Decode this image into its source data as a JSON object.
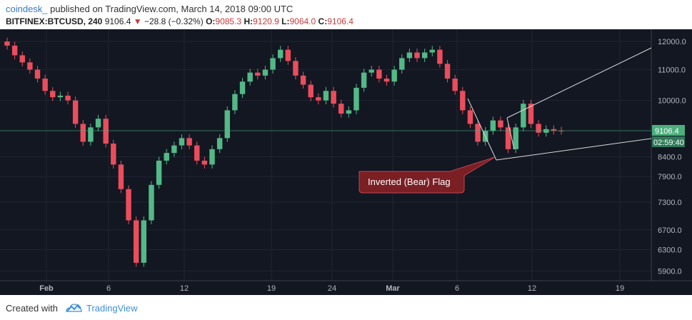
{
  "header": {
    "author": "coindesk_",
    "published_text": "published on TradingView.com, March 14, 2018 09:00 UTC",
    "symbol": "BITFINEX:BTCUSD, 240",
    "last": "9106.4",
    "change": "−28.8 (−0.32%)",
    "o_label": "O:",
    "o_value": "9085.3",
    "h_label": "H:",
    "h_value": "9120.9",
    "l_label": "L:",
    "l_value": "9064.0",
    "c_label": "C:",
    "c_value": "9106.4"
  },
  "footer": {
    "created_with": "Created with",
    "brand": "TradingView"
  },
  "colors": {
    "background": "#131722",
    "up": "#53b987",
    "down": "#eb4d5c",
    "annotation_fill": "#7a1f24",
    "price_tag": "#4caf7d"
  },
  "chart_data": {
    "type": "candlestick",
    "symbol": "BITFINEX:BTCUSD",
    "interval": "240",
    "x_tick_labels": [
      "Feb",
      "6",
      "12",
      "19",
      "24",
      "Mar",
      "6",
      "12",
      "19"
    ],
    "y_tick_labels": [
      "12000.0",
      "11000.0",
      "10000.0",
      "9106.4",
      "8400.0",
      "7900.0",
      "7300.0",
      "6700.0",
      "6300.0",
      "5900.0"
    ],
    "y_ticks": [
      12000,
      11000,
      10000,
      8400,
      7900,
      7300,
      6700,
      6300,
      5900
    ],
    "y_scale": "log",
    "ylim": [
      5800,
      12300
    ],
    "last_price": 9106.4,
    "last_price_label": "9106.4",
    "countdown": "02:59:40",
    "annotation": "Inverted (Bear) Flag",
    "closes": [
      11850,
      11500,
      11250,
      11000,
      10700,
      10300,
      10100,
      10150,
      10000,
      9300,
      8800,
      9200,
      9450,
      8750,
      8200,
      7600,
      6900,
      6050,
      6900,
      7700,
      8300,
      8500,
      8700,
      8900,
      8700,
      8300,
      8200,
      8600,
      8900,
      9700,
      10200,
      10600,
      10900,
      10800,
      11000,
      11400,
      11700,
      11300,
      10800,
      10500,
      10100,
      10000,
      10300,
      9900,
      9600,
      9700,
      10400,
      10900,
      11000,
      10700,
      10600,
      11000,
      11400,
      11600,
      11400,
      11600,
      11700,
      11200,
      10700,
      10300,
      9700,
      9300,
      8800,
      9100,
      9400,
      9200,
      8600,
      9200,
      9900,
      9300,
      9050,
      9150,
      9110,
      9106.4
    ]
  }
}
